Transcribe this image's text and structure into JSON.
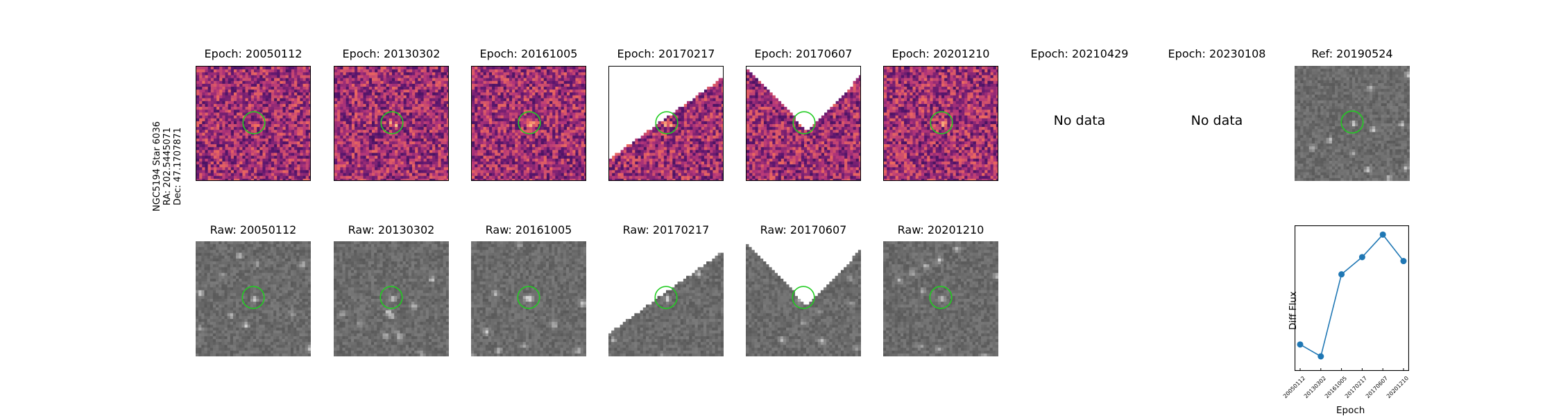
{
  "star_label": {
    "name": "NGC5194 Star 6036",
    "ra": "RA: 202.5445071",
    "dec": "Dec: 47.1707871"
  },
  "diff_panels": [
    {
      "title": "Epoch: 20050112",
      "mask": "none"
    },
    {
      "title": "Epoch: 20130302",
      "mask": "none"
    },
    {
      "title": "Epoch: 20161005",
      "mask": "none"
    },
    {
      "title": "Epoch: 20170217",
      "mask": "diag"
    },
    {
      "title": "Epoch: 20170607",
      "mask": "vee"
    },
    {
      "title": "Epoch: 20201210",
      "mask": "none"
    },
    {
      "title": "Epoch: 20210429",
      "mask": "nodata",
      "nodata": "No data"
    },
    {
      "title": "Epoch: 20230108",
      "mask": "nodata",
      "nodata": "No data"
    }
  ],
  "raw_panels": [
    {
      "title": "Raw: 20050112",
      "mask": "none"
    },
    {
      "title": "Raw: 20130302",
      "mask": "none"
    },
    {
      "title": "Raw: 20161005",
      "mask": "none"
    },
    {
      "title": "Raw: 20170217",
      "mask": "diag"
    },
    {
      "title": "Raw: 20170607",
      "mask": "vee"
    },
    {
      "title": "Raw: 20201210",
      "mask": "none"
    }
  ],
  "ref_panel": {
    "title": "Ref: 20190524"
  },
  "colors": {
    "circle": "#22cc22",
    "line": "#1f77b4"
  },
  "chart_data": {
    "type": "line",
    "title": "",
    "xlabel": "Epoch",
    "ylabel": "Diff Flux",
    "categories": [
      "20050112",
      "20130302",
      "20161005",
      "20170217",
      "20170607",
      "20201210"
    ],
    "values": [
      0.2,
      0.11,
      0.73,
      0.86,
      1.03,
      0.83
    ],
    "ylim": [
      0,
      1.1
    ],
    "grid": false
  }
}
